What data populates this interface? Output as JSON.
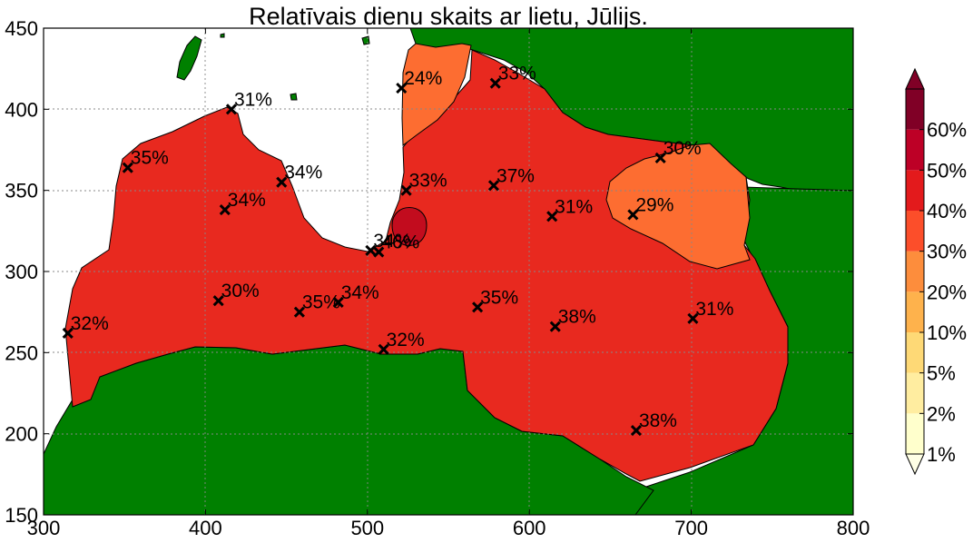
{
  "title": "Relatīvais dienu skaits ar lietu, Jūlijs.",
  "colors": {
    "land": "#008000",
    "sea": "#ffffff",
    "latvia": "#e8291f",
    "orange": "#fd6d31",
    "darkred": "#c20c1e"
  },
  "chart_data": {
    "type": "map",
    "xlim": [
      300,
      800
    ],
    "ylim": [
      150,
      450
    ],
    "x_ticks": [
      "300",
      "400",
      "500",
      "600",
      "700",
      "800"
    ],
    "y_ticks": [
      "150",
      "200",
      "250",
      "300",
      "350",
      "400",
      "450"
    ],
    "grid": true,
    "stations": [
      {
        "x": 315,
        "y": 262,
        "label": "32%"
      },
      {
        "x": 352,
        "y": 364,
        "label": "35%"
      },
      {
        "x": 416,
        "y": 400,
        "label": "31%"
      },
      {
        "x": 412,
        "y": 338,
        "label": "34%"
      },
      {
        "x": 447,
        "y": 355,
        "label": "34%"
      },
      {
        "x": 408,
        "y": 282,
        "label": "30%"
      },
      {
        "x": 458,
        "y": 275,
        "label": "35%"
      },
      {
        "x": 482,
        "y": 281,
        "label": "34%"
      },
      {
        "x": 502,
        "y": 313,
        "label": "34%"
      },
      {
        "x": 507,
        "y": 312,
        "label": "46%"
      },
      {
        "x": 524,
        "y": 350,
        "label": "33%"
      },
      {
        "x": 521,
        "y": 413,
        "label": "24%"
      },
      {
        "x": 579,
        "y": 416,
        "label": "33%"
      },
      {
        "x": 578,
        "y": 353,
        "label": "37%"
      },
      {
        "x": 614,
        "y": 334,
        "label": "31%"
      },
      {
        "x": 568,
        "y": 278,
        "label": "35%"
      },
      {
        "x": 616,
        "y": 266,
        "label": "38%"
      },
      {
        "x": 510,
        "y": 252,
        "label": "32%"
      },
      {
        "x": 681,
        "y": 370,
        "label": "30%"
      },
      {
        "x": 664,
        "y": 335,
        "label": "29%"
      },
      {
        "x": 701,
        "y": 271,
        "label": "31%"
      },
      {
        "x": 666,
        "y": 202,
        "label": "38%"
      }
    ],
    "colorbar": {
      "labels": [
        "1%",
        "2%",
        "5%",
        "10%",
        "20%",
        "30%",
        "40%",
        "50%",
        "60%"
      ],
      "colors": [
        "#ffffcc",
        "#ffeda0",
        "#fed976",
        "#feb24c",
        "#fd8d3c",
        "#fc4e2a",
        "#e31a1c",
        "#bd0026",
        "#800026"
      ],
      "extend": "both",
      "under_color": "#ffffe5",
      "over_color": "#800026"
    }
  }
}
